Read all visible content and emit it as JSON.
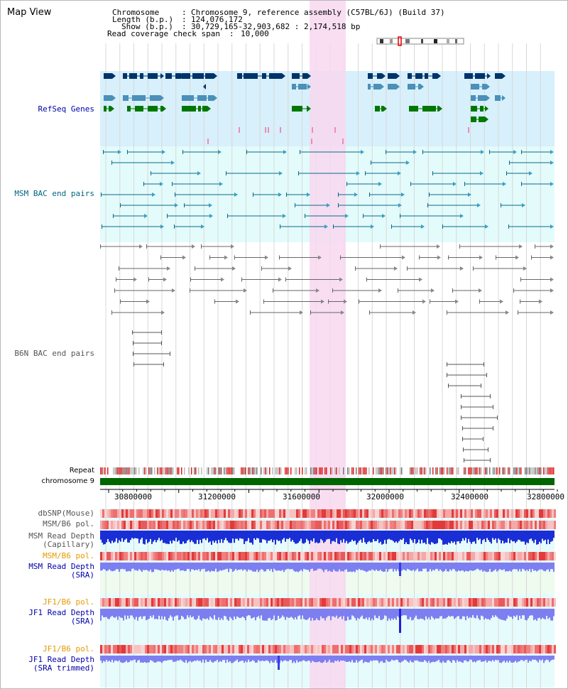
{
  "page": {
    "title": "Map View"
  },
  "info": {
    "chrom_label": "Chromosome",
    "chrom_value": "Chromosome 9, reference assembly (C57BL/6J) (Build 37)",
    "length_label": "Length (b.p.)",
    "length_value": "124,076,172",
    "show_label": "Show (b.p.)",
    "show_value": "30,729,165-32,903,682 : 2,174,518 bp",
    "coverage_label": "Read coverage check span",
    "coverage_value": "10,000",
    "sep": ":"
  },
  "tracks": {
    "refseq": "RefSeq Genes",
    "msm_bac": "MSM BAC end pairs",
    "b6n_bac": "B6N BAC end pairs",
    "repeat": "Repeat",
    "chromosome": "chromosome 9",
    "dbsnp": "dbSNP(Mouse)",
    "msm_b6_pol_1": "MSM/B6 pol.",
    "msm_read_cap_1": "MSM Read Depth",
    "msm_read_cap_2": "(Capillary)",
    "msm_b6_pol_2": "MSM/B6 pol.",
    "msm_read_sra_1": "MSM Read Depth",
    "msm_read_sra_2": "(SRA)",
    "jf1_b6_pol_1": "JF1/B6 pol.",
    "jf1_read_sra_1": "JF1 Read Depth",
    "jf1_read_sra_2": "(SRA)",
    "jf1_b6_pol_2": "JF1/B6 pol.",
    "jf1_read_trim_1": "JF1 Read Depth",
    "jf1_read_trim_2": "(SRA trimmed)"
  },
  "axis": {
    "ticks": [
      "30800000",
      "31200000",
      "31600000",
      "32000000",
      "32400000",
      "32800000"
    ]
  },
  "colors": {
    "label_blue": "#0000aa",
    "label_teal": "#006680",
    "label_gray": "#555555",
    "label_orange": "#e69900",
    "highlight": "#f8d8f0",
    "refseq_bg": "#d7f0fb",
    "msm_bg": "#e3fbfb",
    "gene_dark": "#00336a",
    "gene_mid": "#4a90b8",
    "gene_green": "#007700",
    "chrom_green": "#006600"
  }
}
